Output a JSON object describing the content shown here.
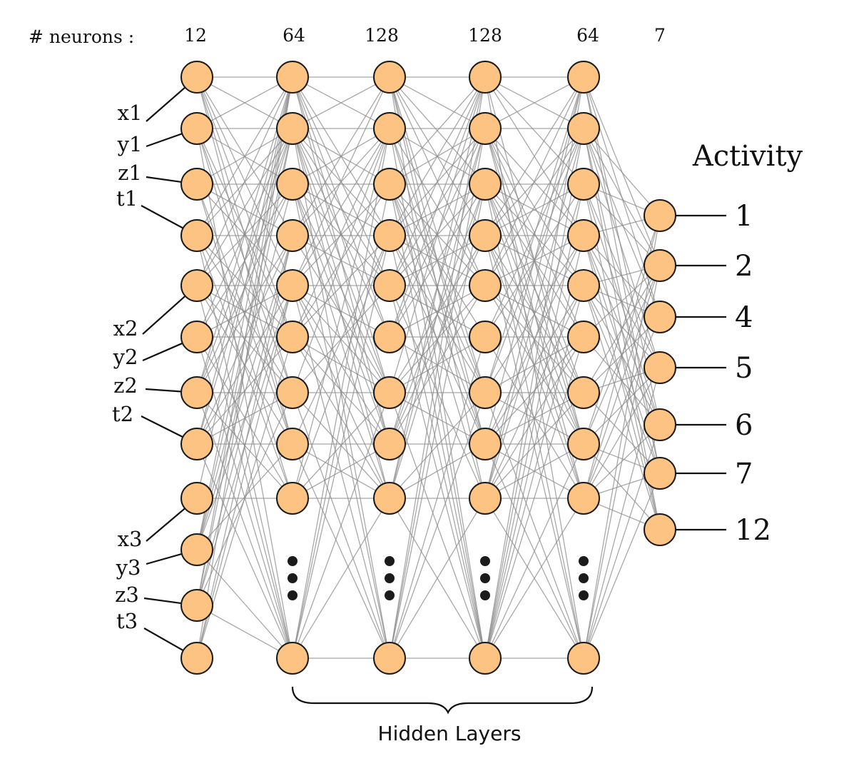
{
  "header": {
    "neurons_label": "# neurons :",
    "layer_counts": [
      "12",
      "64",
      "128",
      "128",
      "64",
      "7"
    ]
  },
  "inputs": {
    "labels": [
      "x1",
      "y1",
      "z1",
      "t1",
      "x2",
      "y2",
      "z2",
      "t2",
      "x3",
      "y3",
      "z3",
      "t3"
    ]
  },
  "output": {
    "title": "Activity",
    "labels": [
      "1",
      "2",
      "4",
      "5",
      "6",
      "7",
      "12"
    ]
  },
  "hidden": {
    "label": "Hidden Layers"
  },
  "colors": {
    "node_fill": "#fcc383",
    "node_stroke": "#1a1a1a",
    "edge": "#8c8c8c",
    "text": "#111111"
  }
}
